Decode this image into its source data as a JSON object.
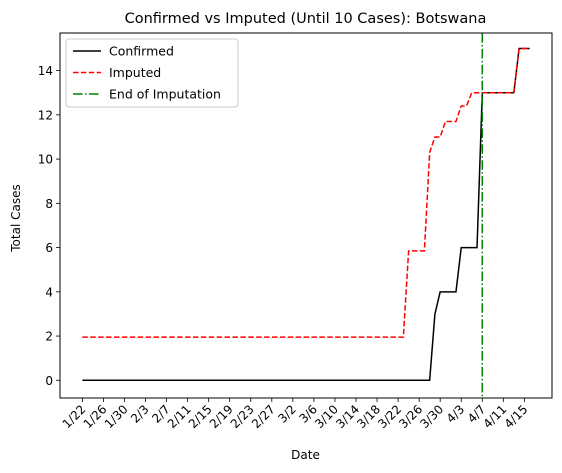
{
  "chart_data": {
    "type": "line",
    "title": "Confirmed vs Imputed (Until 10 Cases): Botswana",
    "xlabel": "Date",
    "ylabel": "Total Cases",
    "x_ticks": [
      "1/22",
      "1/26",
      "1/30",
      "2/3",
      "2/7",
      "2/11",
      "2/15",
      "2/19",
      "2/23",
      "2/27",
      "3/2",
      "3/6",
      "3/10",
      "3/14",
      "3/18",
      "3/22",
      "3/26",
      "3/30",
      "4/3",
      "4/7",
      "4/11",
      "4/15"
    ],
    "y_ticks": [
      0,
      2,
      4,
      6,
      8,
      10,
      12,
      14
    ],
    "ylim": [
      -0.8,
      15.7
    ],
    "grid": false,
    "legend_position": "top-left",
    "series": [
      {
        "name": "Confirmed",
        "color": "#000000",
        "style": "solid",
        "points": [
          [
            "1/22",
            0
          ],
          [
            "3/28",
            0
          ],
          [
            "3/29",
            3
          ],
          [
            "3/30",
            4
          ],
          [
            "4/1",
            4
          ],
          [
            "4/2",
            4
          ],
          [
            "4/3",
            6
          ],
          [
            "4/6",
            6
          ],
          [
            "4/7",
            13
          ],
          [
            "4/12",
            13
          ],
          [
            "4/13",
            13
          ],
          [
            "4/14",
            15
          ],
          [
            "4/15",
            15
          ],
          [
            "4/16",
            15
          ]
        ]
      },
      {
        "name": "Imputed",
        "color": "#ff0000",
        "style": "dashed",
        "points": [
          [
            "1/22",
            1.95
          ],
          [
            "3/23",
            1.95
          ],
          [
            "3/24",
            5.85
          ],
          [
            "3/27",
            5.85
          ],
          [
            "3/28",
            10.3
          ],
          [
            "3/29",
            11.0
          ],
          [
            "3/30",
            11.0
          ],
          [
            "3/31",
            11.7
          ],
          [
            "4/2",
            11.7
          ],
          [
            "4/3",
            12.4
          ],
          [
            "4/4",
            12.4
          ],
          [
            "4/5",
            13
          ],
          [
            "4/12",
            13
          ],
          [
            "4/13",
            13
          ],
          [
            "4/14",
            15
          ],
          [
            "4/15",
            15
          ],
          [
            "4/16",
            15
          ]
        ]
      }
    ],
    "vline": {
      "name": "End of Imputation",
      "x": "4/7",
      "color": "#008000",
      "style": "dash-dot"
    }
  }
}
